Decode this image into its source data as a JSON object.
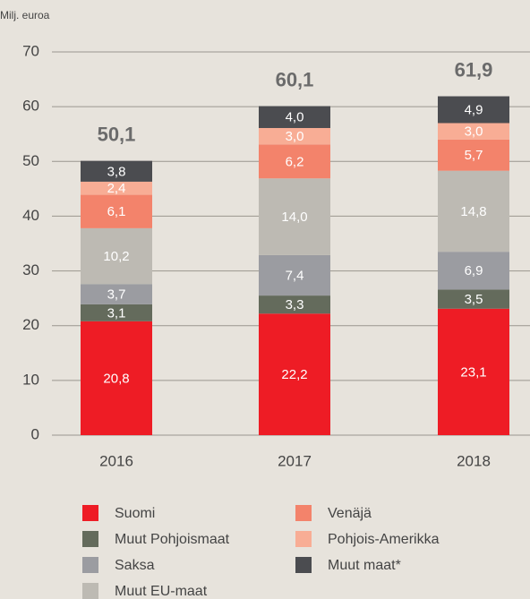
{
  "chart_data": {
    "type": "stacked_bar",
    "y_axis_label": "Milj. euroa",
    "categories": [
      "2016",
      "2017",
      "2018"
    ],
    "series": [
      {
        "name": "Suomi",
        "color": "#ee1c25",
        "values": [
          20.8,
          22.2,
          23.1
        ],
        "value_labels": [
          "20,8",
          "22,2",
          "23,1"
        ]
      },
      {
        "name": "Muut Pohjoismaat",
        "color": "#646b5c",
        "values": [
          3.1,
          3.3,
          3.5
        ],
        "value_labels": [
          "3,1",
          "3,3",
          "3,5"
        ]
      },
      {
        "name": "Saksa",
        "color": "#9b9ca1",
        "values": [
          3.7,
          7.4,
          6.9
        ],
        "value_labels": [
          "3,7",
          "7,4",
          "6,9"
        ]
      },
      {
        "name": "Muut EU-maat",
        "color": "#bdbab3",
        "values": [
          10.2,
          14.0,
          14.8
        ],
        "value_labels": [
          "10,2",
          "14,0",
          "14,8"
        ]
      },
      {
        "name": "Venäjä",
        "color": "#f3836b",
        "values": [
          6.1,
          6.2,
          5.7
        ],
        "value_labels": [
          "6,1",
          "6,2",
          "5,7"
        ]
      },
      {
        "name": "Pohjois-Amerikka",
        "color": "#f8ad95",
        "values": [
          2.4,
          3.0,
          3.0
        ],
        "value_labels": [
          "2,4",
          "3,0",
          "3,0"
        ]
      },
      {
        "name": "Muut maat*",
        "color": "#4b4c50",
        "values": [
          3.8,
          4.0,
          4.9
        ],
        "value_labels": [
          "3,8",
          "4,0",
          "4,9"
        ]
      }
    ],
    "totals": [
      50.1,
      60.1,
      61.9
    ],
    "total_labels": [
      "50,1",
      "60,1",
      "61,9"
    ],
    "ylim": [
      0,
      70
    ],
    "yticks": [
      0,
      10,
      20,
      30,
      40,
      50,
      60,
      70
    ],
    "grid": true
  }
}
